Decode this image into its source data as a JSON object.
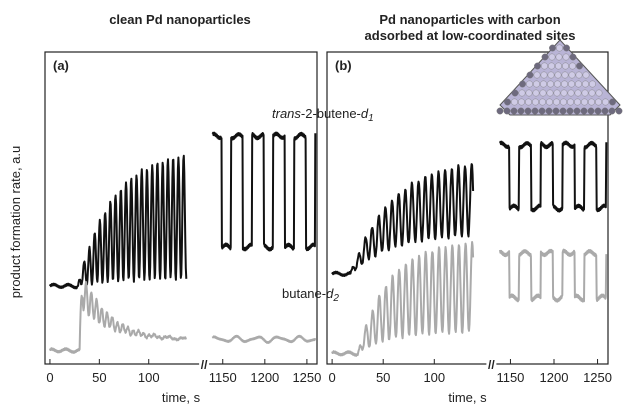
{
  "chart_data": [
    {
      "type": "line",
      "panel_label": "(a)",
      "title": "clean Pd nanoparticles",
      "subtitle": "",
      "ylabel": "product formation rate, a.u",
      "xlabel": "time, s",
      "x_segments": [
        {
          "xlim": [
            -5,
            150
          ],
          "ticks": [
            0,
            50,
            100
          ]
        },
        {
          "xlim": [
            1135,
            1262
          ],
          "ticks": [
            1150,
            1200,
            1250
          ]
        }
      ],
      "axis_break": "//",
      "ylim": [
        0,
        100
      ],
      "grid": false,
      "series": [
        {
          "name": "trans-2-butene-d1",
          "color": "#111111",
          "segment1": {
            "baseline": 24,
            "start": 28,
            "rise_end": 75,
            "offset": 48,
            "amplitude": 24,
            "period": 5.3,
            "rise_tau": 35
          },
          "segment2": {
            "low": 37,
            "high": 74,
            "period": 25,
            "duty": 0.55
          }
        },
        {
          "name": "butane-d2",
          "color": "#aaaaaa",
          "segment1": {
            "baseline": 2.5,
            "start": 30,
            "peak": 24,
            "decay_to": 6,
            "amplitude": 13,
            "period": 5.3,
            "decay_tau": 28
          },
          "segment2": {
            "low": 5.5,
            "high": 7,
            "period": 25
          }
        }
      ],
      "series_labels_shown": []
    },
    {
      "type": "line",
      "panel_label": "(b)",
      "title": "Pd nanoparticles with carbon",
      "subtitle": "adsorbed at low-coordinated sites",
      "ylabel": "",
      "xlabel": "time, s",
      "x_segments": [
        {
          "xlim": [
            -5,
            150
          ],
          "ticks": [
            0,
            50,
            100
          ]
        },
        {
          "xlim": [
            1135,
            1262
          ],
          "ticks": [
            1150,
            1200,
            1250
          ]
        }
      ],
      "axis_break": "//",
      "ylim": [
        0,
        100
      ],
      "grid": false,
      "series": [
        {
          "name": "trans-2-butene-d1",
          "color": "#111111",
          "segment1": {
            "baseline": 28,
            "start": 18,
            "rise_end": 62,
            "offset": 54,
            "amplitude": 14,
            "period": 6.5,
            "rise_tau": 40
          },
          "segment2": {
            "low": 50,
            "high": 71,
            "period": 25,
            "duty": 0.55
          }
        },
        {
          "name": "butane-d2",
          "color": "#aaaaaa",
          "segment1": {
            "baseline": 1.5,
            "start": 25,
            "rise_end": 40,
            "offset": 24,
            "amplitude": 17,
            "period": 6.5,
            "rise_tau": 30
          },
          "segment2": {
            "low": 20,
            "high": 35,
            "period": 25,
            "duty": 0.55
          }
        }
      ],
      "series_labels_shown": [
        "trans-2-butene-d1",
        "butane-d2"
      ]
    }
  ],
  "annotations": {
    "label_trans_prefix": "trans",
    "label_trans_rest": "-2-butene-",
    "label_trans_sub_d": "d",
    "label_trans_sub_n": "1",
    "label_butane_rest": "butane-",
    "label_butane_sub_d": "d",
    "label_butane_sub_n": "2"
  },
  "inset": {
    "icon": "nanoparticle-icon",
    "fill": "#b9b4d6",
    "edge_atoms": "#6e6a7e"
  }
}
